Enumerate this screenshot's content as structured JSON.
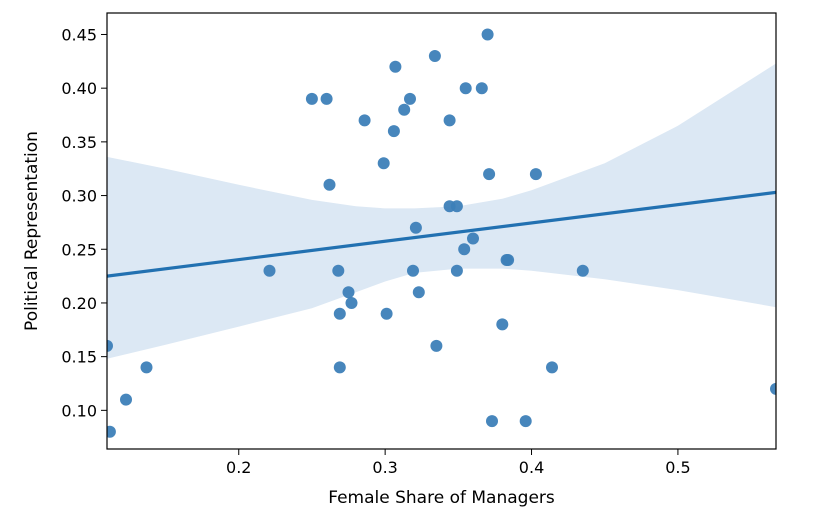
{
  "chart_data": {
    "type": "scatter",
    "title": "",
    "xlabel": "Female Share of Managers",
    "ylabel": "Political Representation",
    "xlim": [
      0.11,
      0.567
    ],
    "ylim": [
      0.064,
      0.47
    ],
    "x_ticks": [
      0.2,
      0.3,
      0.4,
      0.5
    ],
    "x_tick_labels": [
      "0.2",
      "0.3",
      "0.4",
      "0.5"
    ],
    "y_ticks": [
      0.1,
      0.15,
      0.2,
      0.25,
      0.3,
      0.35,
      0.4,
      0.45
    ],
    "y_tick_labels": [
      "0.10",
      "0.15",
      "0.20",
      "0.25",
      "0.30",
      "0.35",
      "0.40",
      "0.45"
    ],
    "grid": false,
    "point_color": "#3d7fb8",
    "line_color": "#2271b1",
    "band_color": "#dce8f4",
    "points": [
      {
        "x": 0.11,
        "y": 0.16
      },
      {
        "x": 0.112,
        "y": 0.08
      },
      {
        "x": 0.123,
        "y": 0.11
      },
      {
        "x": 0.137,
        "y": 0.14
      },
      {
        "x": 0.221,
        "y": 0.23
      },
      {
        "x": 0.25,
        "y": 0.39
      },
      {
        "x": 0.26,
        "y": 0.39
      },
      {
        "x": 0.262,
        "y": 0.31
      },
      {
        "x": 0.268,
        "y": 0.23
      },
      {
        "x": 0.269,
        "y": 0.19
      },
      {
        "x": 0.269,
        "y": 0.14
      },
      {
        "x": 0.275,
        "y": 0.21
      },
      {
        "x": 0.277,
        "y": 0.2
      },
      {
        "x": 0.286,
        "y": 0.37
      },
      {
        "x": 0.299,
        "y": 0.33
      },
      {
        "x": 0.301,
        "y": 0.19
      },
      {
        "x": 0.306,
        "y": 0.36
      },
      {
        "x": 0.307,
        "y": 0.42
      },
      {
        "x": 0.313,
        "y": 0.38
      },
      {
        "x": 0.317,
        "y": 0.39
      },
      {
        "x": 0.319,
        "y": 0.23
      },
      {
        "x": 0.321,
        "y": 0.27
      },
      {
        "x": 0.323,
        "y": 0.21
      },
      {
        "x": 0.334,
        "y": 0.43
      },
      {
        "x": 0.335,
        "y": 0.16
      },
      {
        "x": 0.344,
        "y": 0.37
      },
      {
        "x": 0.344,
        "y": 0.29
      },
      {
        "x": 0.349,
        "y": 0.23
      },
      {
        "x": 0.349,
        "y": 0.29
      },
      {
        "x": 0.354,
        "y": 0.25
      },
      {
        "x": 0.355,
        "y": 0.4
      },
      {
        "x": 0.36,
        "y": 0.26
      },
      {
        "x": 0.366,
        "y": 0.4
      },
      {
        "x": 0.37,
        "y": 0.45
      },
      {
        "x": 0.371,
        "y": 0.32
      },
      {
        "x": 0.373,
        "y": 0.09
      },
      {
        "x": 0.38,
        "y": 0.18
      },
      {
        "x": 0.383,
        "y": 0.24
      },
      {
        "x": 0.384,
        "y": 0.24
      },
      {
        "x": 0.396,
        "y": 0.09
      },
      {
        "x": 0.403,
        "y": 0.32
      },
      {
        "x": 0.414,
        "y": 0.14
      },
      {
        "x": 0.435,
        "y": 0.23
      },
      {
        "x": 0.567,
        "y": 0.12
      }
    ],
    "regression": {
      "x": [
        0.11,
        0.567
      ],
      "y": [
        0.225,
        0.303
      ]
    },
    "confidence_band": {
      "x": [
        0.11,
        0.15,
        0.2,
        0.25,
        0.28,
        0.3,
        0.32,
        0.35,
        0.38,
        0.4,
        0.45,
        0.5,
        0.567
      ],
      "upper": [
        0.336,
        0.325,
        0.31,
        0.296,
        0.29,
        0.288,
        0.288,
        0.29,
        0.297,
        0.305,
        0.33,
        0.365,
        0.423
      ],
      "lower": [
        0.148,
        0.161,
        0.178,
        0.195,
        0.21,
        0.22,
        0.228,
        0.232,
        0.232,
        0.23,
        0.222,
        0.212,
        0.196
      ]
    }
  }
}
